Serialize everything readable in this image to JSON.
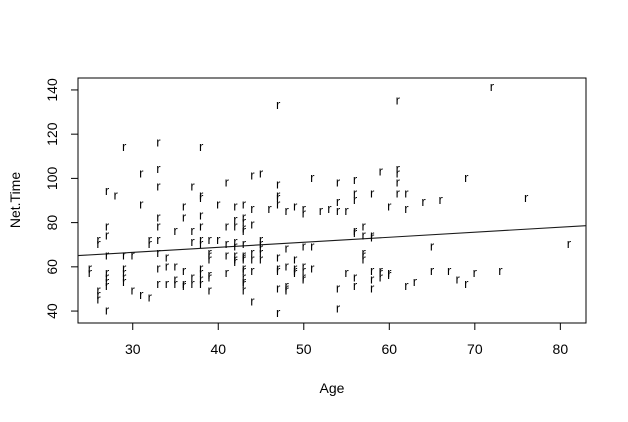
{
  "chart_data": {
    "type": "scatter",
    "title": "",
    "xlabel": "Age",
    "ylabel": "Net.Time",
    "xlim": [
      23.6,
      83.0
    ],
    "ylim": [
      34.6,
      145.4
    ],
    "x_ticks": [
      30,
      40,
      50,
      60,
      70,
      80
    ],
    "y_ticks": [
      40,
      60,
      80,
      100,
      120,
      140
    ],
    "grid": "off",
    "legend": "none",
    "point_symbol": "r",
    "point_color": "#000080",
    "axis_color": "#000000",
    "regression_line": {
      "intercept": 59.7,
      "slope": 0.228,
      "color": "#1a1a1a"
    },
    "points": [
      [
        29,
        114
      ],
      [
        33,
        116
      ],
      [
        38,
        114
      ],
      [
        47,
        133
      ],
      [
        61,
        135
      ],
      [
        72,
        141
      ],
      [
        31,
        102
      ],
      [
        33,
        104
      ],
      [
        44,
        101
      ],
      [
        45,
        102
      ],
      [
        51,
        100
      ],
      [
        59,
        103
      ],
      [
        61,
        104
      ],
      [
        61,
        102
      ],
      [
        69,
        100
      ],
      [
        27,
        94
      ],
      [
        28,
        92
      ],
      [
        33,
        96
      ],
      [
        37,
        96
      ],
      [
        38,
        92
      ],
      [
        41,
        98
      ],
      [
        47,
        97
      ],
      [
        47,
        92
      ],
      [
        54,
        98
      ],
      [
        56,
        99
      ],
      [
        61,
        98
      ],
      [
        56,
        93
      ],
      [
        58,
        93
      ],
      [
        61,
        93
      ],
      [
        62,
        93
      ],
      [
        66,
        90
      ],
      [
        76,
        91
      ],
      [
        40,
        88
      ],
      [
        42,
        87
      ],
      [
        43,
        88
      ],
      [
        44,
        86
      ],
      [
        46,
        86
      ],
      [
        47,
        91
      ],
      [
        47,
        88
      ],
      [
        48,
        85
      ],
      [
        49,
        87
      ],
      [
        50,
        86
      ],
      [
        50,
        84
      ],
      [
        52,
        85
      ],
      [
        53,
        86
      ],
      [
        54,
        89
      ],
      [
        56,
        90
      ],
      [
        54,
        85
      ],
      [
        55,
        85
      ],
      [
        60,
        87
      ],
      [
        62,
        86
      ],
      [
        64,
        89
      ],
      [
        31,
        88
      ],
      [
        36,
        87
      ],
      [
        38,
        91
      ],
      [
        36,
        82
      ],
      [
        38,
        83
      ],
      [
        33,
        82
      ],
      [
        27,
        78
      ],
      [
        27,
        74
      ],
      [
        26,
        72
      ],
      [
        26,
        70
      ],
      [
        33,
        78
      ],
      [
        35,
        76
      ],
      [
        37,
        76
      ],
      [
        38,
        78
      ],
      [
        42,
        81
      ],
      [
        43,
        82
      ],
      [
        43,
        80
      ],
      [
        44,
        79
      ],
      [
        41,
        78
      ],
      [
        42,
        78
      ],
      [
        43,
        77
      ],
      [
        43,
        76
      ],
      [
        57,
        78
      ],
      [
        56,
        76
      ],
      [
        56,
        75
      ],
      [
        57,
        74
      ],
      [
        58,
        74
      ],
      [
        58,
        73
      ],
      [
        32,
        72
      ],
      [
        33,
        72
      ],
      [
        32,
        70
      ],
      [
        37,
        71
      ],
      [
        38,
        72
      ],
      [
        38,
        70
      ],
      [
        39,
        72
      ],
      [
        40,
        72
      ],
      [
        41,
        70
      ],
      [
        42,
        71
      ],
      [
        42,
        69
      ],
      [
        43,
        70
      ],
      [
        45,
        72
      ],
      [
        45,
        70
      ],
      [
        27,
        65
      ],
      [
        29,
        65
      ],
      [
        30,
        65
      ],
      [
        33,
        66
      ],
      [
        34,
        64
      ],
      [
        39,
        66
      ],
      [
        39,
        65
      ],
      [
        41,
        65
      ],
      [
        42,
        65
      ],
      [
        43,
        65
      ],
      [
        44,
        66
      ],
      [
        45,
        68
      ],
      [
        45,
        66
      ],
      [
        45,
        63
      ],
      [
        47,
        64
      ],
      [
        48,
        68
      ],
      [
        49,
        63
      ],
      [
        50,
        69
      ],
      [
        51,
        69
      ],
      [
        57,
        66
      ],
      [
        57,
        65
      ],
      [
        65,
        69
      ],
      [
        81,
        70
      ],
      [
        25,
        59
      ],
      [
        25,
        57
      ],
      [
        27,
        57
      ],
      [
        27,
        55
      ],
      [
        27,
        53
      ],
      [
        27,
        51
      ],
      [
        26,
        49
      ],
      [
        26,
        47
      ],
      [
        26,
        45
      ],
      [
        27,
        40
      ],
      [
        29,
        59
      ],
      [
        29,
        57
      ],
      [
        29,
        55
      ],
      [
        29,
        53
      ],
      [
        30,
        49
      ],
      [
        31,
        47
      ],
      [
        32,
        46
      ],
      [
        33,
        59
      ],
      [
        34,
        60
      ],
      [
        35,
        60
      ],
      [
        33,
        52
      ],
      [
        34,
        52
      ],
      [
        35,
        54
      ],
      [
        35,
        52
      ],
      [
        36,
        58
      ],
      [
        36,
        52
      ],
      [
        36,
        51
      ],
      [
        37,
        55
      ],
      [
        37,
        52
      ],
      [
        38,
        59
      ],
      [
        38,
        57
      ],
      [
        38,
        54
      ],
      [
        38,
        52
      ],
      [
        39,
        49
      ],
      [
        39,
        63
      ],
      [
        42,
        63
      ],
      [
        42,
        62
      ],
      [
        43,
        64
      ],
      [
        43,
        63
      ],
      [
        44,
        63
      ],
      [
        39,
        56
      ],
      [
        39,
        55
      ],
      [
        41,
        57
      ],
      [
        43,
        59
      ],
      [
        43,
        58
      ],
      [
        44,
        58
      ],
      [
        43,
        55
      ],
      [
        43,
        53
      ],
      [
        43,
        52
      ],
      [
        43,
        49
      ],
      [
        47,
        59
      ],
      [
        47,
        58
      ],
      [
        48,
        60
      ],
      [
        49,
        59
      ],
      [
        49,
        58
      ],
      [
        49,
        57
      ],
      [
        50,
        60
      ],
      [
        50,
        58
      ],
      [
        51,
        59
      ],
      [
        50,
        55
      ],
      [
        50,
        54
      ],
      [
        47,
        50
      ],
      [
        48,
        51
      ],
      [
        48,
        50
      ],
      [
        48,
        49
      ],
      [
        44,
        44
      ],
      [
        47,
        39
      ],
      [
        54,
        50
      ],
      [
        54,
        41
      ],
      [
        57,
        63
      ],
      [
        55,
        57
      ],
      [
        56,
        55
      ],
      [
        58,
        58
      ],
      [
        59,
        58
      ],
      [
        59,
        57
      ],
      [
        60,
        57
      ],
      [
        60,
        56
      ],
      [
        58,
        54
      ],
      [
        59,
        55
      ],
      [
        56,
        51
      ],
      [
        58,
        50
      ],
      [
        62,
        51
      ],
      [
        63,
        53
      ],
      [
        65,
        58
      ],
      [
        67,
        58
      ],
      [
        68,
        54
      ],
      [
        69,
        52
      ],
      [
        70,
        57
      ],
      [
        73,
        58
      ]
    ]
  }
}
